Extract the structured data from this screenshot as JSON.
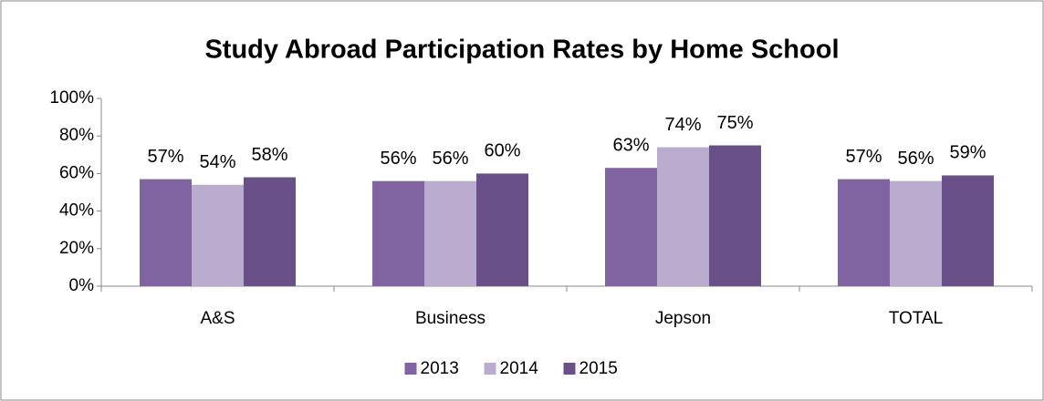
{
  "chart_data": {
    "type": "bar",
    "title": "Study Abroad Participation Rates by Home School",
    "categories": [
      "A&S",
      "Business",
      "Jepson",
      "TOTAL"
    ],
    "series": [
      {
        "name": "2013",
        "color": "#8064a2",
        "values": [
          57,
          56,
          63,
          57
        ],
        "value_labels": [
          "57%",
          "56%",
          "63%",
          "57%"
        ]
      },
      {
        "name": "2014",
        "color": "#b9acce",
        "values": [
          54,
          56,
          74,
          56
        ],
        "value_labels": [
          "54%",
          "56%",
          "74%",
          "56%"
        ]
      },
      {
        "name": "2015",
        "color": "#6a5088",
        "values": [
          58,
          60,
          75,
          59
        ],
        "value_labels": [
          "58%",
          "60%",
          "75%",
          "59%"
        ]
      }
    ],
    "ylim": [
      0,
      100
    ],
    "yticks": [
      {
        "value": 0,
        "label": "0%"
      },
      {
        "value": 20,
        "label": "20%"
      },
      {
        "value": 40,
        "label": "40%"
      },
      {
        "value": 60,
        "label": "60%"
      },
      {
        "value": 80,
        "label": "80%"
      },
      {
        "value": 100,
        "label": "100%"
      }
    ],
    "grid": false,
    "legend": "bottom"
  }
}
